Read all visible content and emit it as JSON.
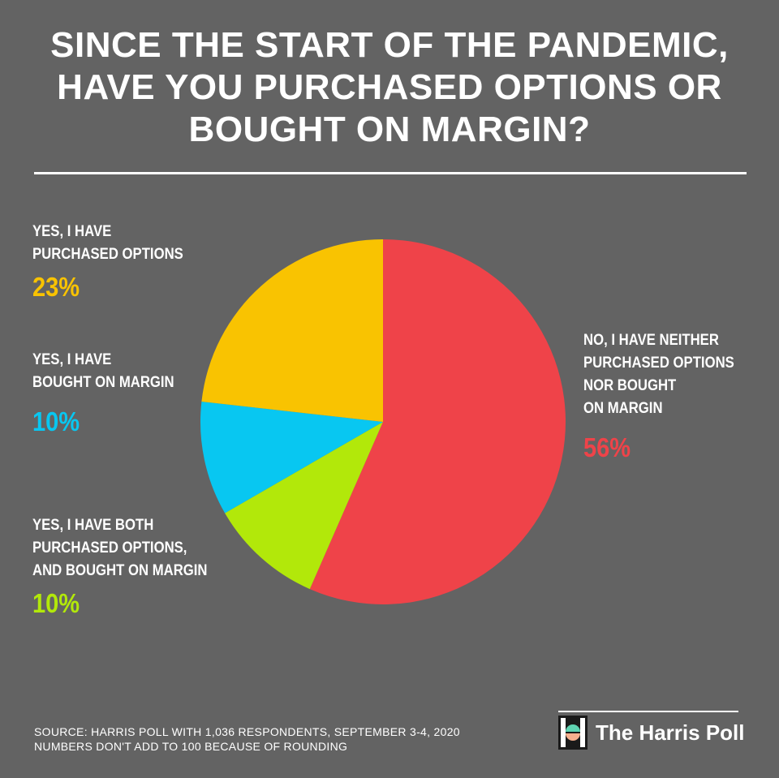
{
  "title_lines": [
    "SINCE THE START OF THE PANDEMIC,",
    "HAVE YOU PURCHASED OPTIONS OR",
    "BOUGHT ON MARGIN?"
  ],
  "chart_data": {
    "type": "pie",
    "slices": [
      {
        "label_lines": [
          "NO, I HAVE NEITHER",
          "PURCHASED OPTIONS",
          "NOR BOUGHT",
          "ON MARGIN"
        ],
        "value": 56,
        "display": "56%",
        "color": "#ef4349"
      },
      {
        "label_lines": [
          "YES, I HAVE BOTH",
          "PURCHASED OPTIONS,",
          "AND BOUGHT ON MARGIN"
        ],
        "value": 10,
        "display": "10%",
        "color": "#b2e80a"
      },
      {
        "label_lines": [
          "YES, I HAVE",
          "BOUGHT ON MARGIN"
        ],
        "value": 10,
        "display": "10%",
        "color": "#08c7f1"
      },
      {
        "label_lines": [
          "YES, I HAVE",
          "PURCHASED OPTIONS"
        ],
        "value": 23,
        "display": "23%",
        "color": "#f9c301"
      }
    ]
  },
  "source_lines": [
    "SOURCE: HARRIS POLL WITH 1,036 RESPONDENTS, SEPTEMBER 3-4, 2020",
    "NUMBERS DON'T ADD TO 100 BECAUSE OF ROUNDING"
  ],
  "brand": {
    "name": "The Harris Poll",
    "logo_icon": "harris-poll-logo-icon"
  }
}
